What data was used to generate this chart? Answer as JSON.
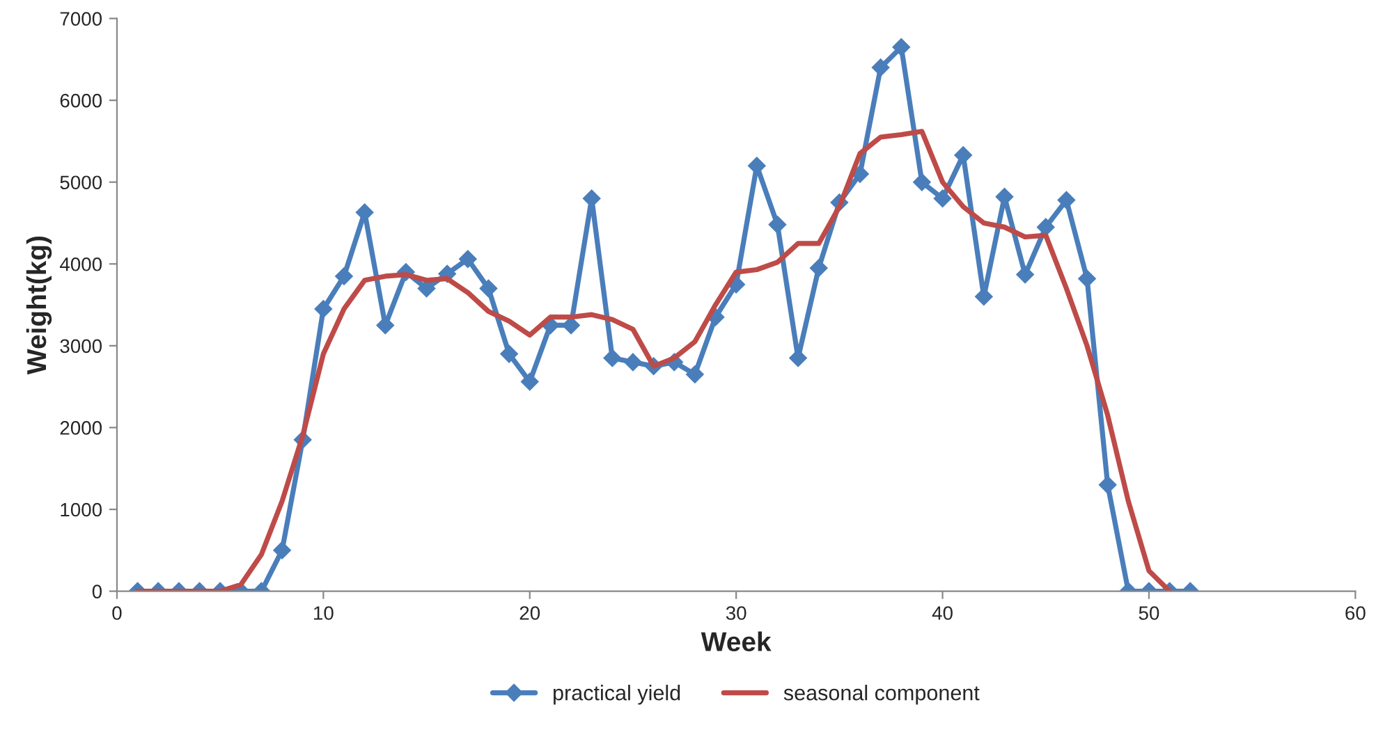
{
  "chart_data": {
    "type": "line",
    "xlabel": "Week",
    "ylabel": "Weight(kg)",
    "xlim": [
      0,
      60
    ],
    "xticks": [
      0,
      10,
      20,
      30,
      40,
      50,
      60
    ],
    "ylim": [
      0,
      7000
    ],
    "yticks": [
      0,
      1000,
      2000,
      3000,
      4000,
      5000,
      6000,
      7000
    ],
    "grid": false,
    "legend": "bottom",
    "line_style": "solid",
    "series": [
      {
        "name": "practical yield",
        "color": "#4a7ebb",
        "marker": "diamond",
        "x": [
          1,
          2,
          3,
          4,
          5,
          6,
          7,
          8,
          9,
          10,
          11,
          12,
          13,
          14,
          15,
          16,
          17,
          18,
          19,
          20,
          21,
          22,
          23,
          24,
          25,
          26,
          27,
          28,
          29,
          30,
          31,
          32,
          33,
          34,
          35,
          36,
          37,
          38,
          39,
          40,
          41,
          42,
          43,
          44,
          45,
          46,
          47,
          48,
          49,
          50,
          51,
          52
        ],
        "values": [
          0,
          0,
          0,
          0,
          0,
          0,
          0,
          500,
          1850,
          3450,
          3850,
          4630,
          3250,
          3900,
          3700,
          3880,
          4060,
          3700,
          2900,
          2560,
          3250,
          3250,
          4800,
          2850,
          2800,
          2750,
          2800,
          2650,
          3350,
          3750,
          5200,
          4480,
          2850,
          3950,
          4750,
          5100,
          6400,
          6650,
          5000,
          4800,
          5330,
          3600,
          4820,
          3870,
          4450,
          4780,
          3820,
          1300,
          0,
          0,
          0,
          0
        ]
      },
      {
        "name": "seasonal component",
        "color": "#be4b48",
        "marker": "none",
        "x": [
          1,
          2,
          3,
          4,
          5,
          6,
          7,
          8,
          9,
          10,
          11,
          12,
          13,
          14,
          15,
          16,
          17,
          18,
          19,
          20,
          21,
          22,
          23,
          24,
          25,
          26,
          27,
          28,
          29,
          30,
          31,
          32,
          33,
          34,
          35,
          36,
          37,
          38,
          39,
          40,
          41,
          42,
          43,
          44,
          45,
          46,
          47,
          48,
          49,
          50,
          51
        ],
        "values": [
          0,
          0,
          0,
          0,
          0,
          80,
          450,
          1100,
          1900,
          2900,
          3450,
          3800,
          3850,
          3870,
          3800,
          3820,
          3650,
          3420,
          3300,
          3130,
          3350,
          3350,
          3380,
          3320,
          3200,
          2750,
          2850,
          3050,
          3500,
          3900,
          3930,
          4020,
          4250,
          4250,
          4700,
          5350,
          5550,
          5580,
          5620,
          5000,
          4700,
          4500,
          4450,
          4330,
          4350,
          3700,
          3000,
          2150,
          1100,
          250,
          0
        ]
      }
    ]
  }
}
